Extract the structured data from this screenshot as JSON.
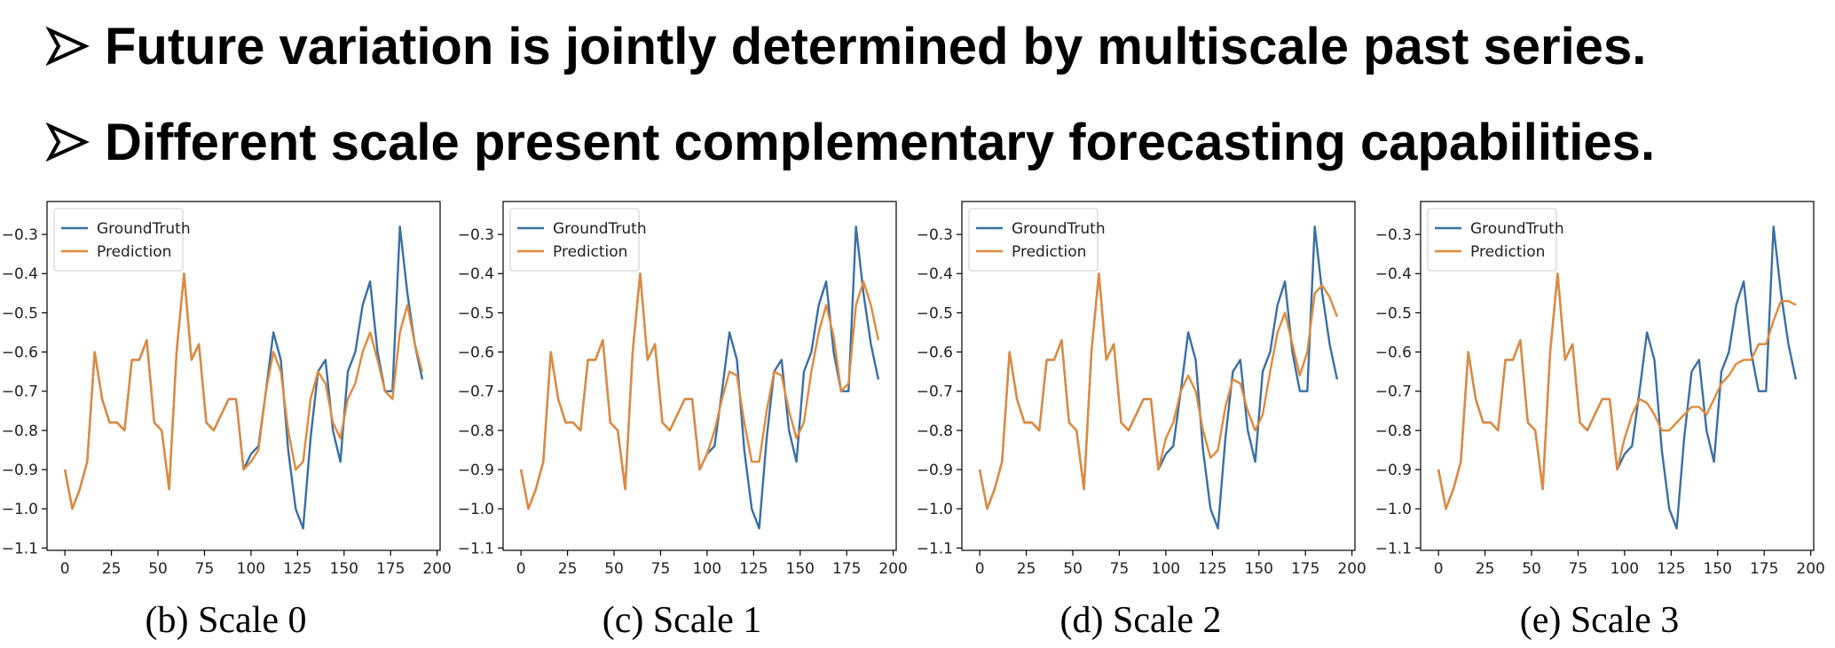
{
  "header": {
    "bullets": [
      "Future variation is jointly determined by multiscale past series.",
      "Different scale present complementary forecasting capabilities."
    ]
  },
  "chart_data": [
    {
      "type": "line",
      "caption": "(b) Scale 0",
      "legend": "upper left",
      "xlim": [
        -9.6,
        201.6
      ],
      "ylim": [
        -1.106,
        -0.216
      ],
      "xticks": [
        0,
        25,
        50,
        75,
        100,
        125,
        150,
        175,
        200
      ],
      "yticks": [
        {
          "value": -1.1,
          "label": "−1.1"
        },
        {
          "value": -1.0,
          "label": "−1.0"
        },
        {
          "value": -0.9,
          "label": "−0.9"
        },
        {
          "value": -0.8,
          "label": "−0.8"
        },
        {
          "value": -0.7,
          "label": "−0.7"
        },
        {
          "value": -0.6,
          "label": "−0.6"
        },
        {
          "value": -0.5,
          "label": "−0.5"
        },
        {
          "value": -0.4,
          "label": "−0.4"
        },
        {
          "value": -0.3,
          "label": "−0.3"
        }
      ],
      "x": [
        0,
        4,
        8,
        12,
        16,
        20,
        24,
        28,
        32,
        36,
        40,
        44,
        48,
        52,
        56,
        60,
        64,
        68,
        72,
        76,
        80,
        84,
        88,
        92,
        96,
        100,
        104,
        108,
        112,
        116,
        120,
        124,
        128,
        132,
        136,
        140,
        144,
        148,
        152,
        156,
        160,
        164,
        168,
        172,
        176,
        180,
        184,
        188,
        192
      ],
      "series": [
        {
          "name": "GroundTruth",
          "color": "#3a6fa5",
          "values": [
            -0.9,
            -1.0,
            -0.95,
            -0.88,
            -0.6,
            -0.72,
            -0.78,
            -0.78,
            -0.8,
            -0.62,
            -0.62,
            -0.57,
            -0.78,
            -0.8,
            -0.95,
            -0.6,
            -0.4,
            -0.62,
            -0.58,
            -0.78,
            -0.8,
            -0.76,
            -0.72,
            -0.72,
            -0.9,
            -0.86,
            -0.84,
            -0.7,
            -0.55,
            -0.62,
            -0.85,
            -1.0,
            -1.05,
            -0.82,
            -0.65,
            -0.62,
            -0.8,
            -0.88,
            -0.65,
            -0.6,
            -0.48,
            -0.42,
            -0.6,
            -0.7,
            -0.7,
            -0.28,
            -0.45,
            -0.58,
            -0.67
          ]
        },
        {
          "name": "Prediction",
          "color": "#e08a3c",
          "values": [
            -0.9,
            -1.0,
            -0.95,
            -0.88,
            -0.6,
            -0.72,
            -0.78,
            -0.78,
            -0.8,
            -0.62,
            -0.62,
            -0.57,
            -0.78,
            -0.8,
            -0.95,
            -0.6,
            -0.4,
            -0.62,
            -0.58,
            -0.78,
            -0.8,
            -0.76,
            -0.72,
            -0.72,
            -0.9,
            -0.88,
            -0.85,
            -0.7,
            -0.6,
            -0.65,
            -0.8,
            -0.9,
            -0.88,
            -0.72,
            -0.65,
            -0.68,
            -0.78,
            -0.82,
            -0.72,
            -0.68,
            -0.6,
            -0.55,
            -0.62,
            -0.7,
            -0.72,
            -0.55,
            -0.48,
            -0.58,
            -0.65
          ]
        }
      ]
    },
    {
      "type": "line",
      "caption": "(c) Scale 1",
      "legend": "upper left",
      "xlim": [
        -9.6,
        201.6
      ],
      "ylim": [
        -1.106,
        -0.216
      ],
      "xticks": [
        0,
        25,
        50,
        75,
        100,
        125,
        150,
        175,
        200
      ],
      "yticks": [
        {
          "value": -1.1,
          "label": "−1.1"
        },
        {
          "value": -1.0,
          "label": "−1.0"
        },
        {
          "value": -0.9,
          "label": "−0.9"
        },
        {
          "value": -0.8,
          "label": "−0.8"
        },
        {
          "value": -0.7,
          "label": "−0.7"
        },
        {
          "value": -0.6,
          "label": "−0.6"
        },
        {
          "value": -0.5,
          "label": "−0.5"
        },
        {
          "value": -0.4,
          "label": "−0.4"
        },
        {
          "value": -0.3,
          "label": "−0.3"
        }
      ],
      "x": [
        0,
        4,
        8,
        12,
        16,
        20,
        24,
        28,
        32,
        36,
        40,
        44,
        48,
        52,
        56,
        60,
        64,
        68,
        72,
        76,
        80,
        84,
        88,
        92,
        96,
        100,
        104,
        108,
        112,
        116,
        120,
        124,
        128,
        132,
        136,
        140,
        144,
        148,
        152,
        156,
        160,
        164,
        168,
        172,
        176,
        180,
        184,
        188,
        192
      ],
      "series": [
        {
          "name": "GroundTruth",
          "color": "#3a6fa5",
          "values": [
            -0.9,
            -1.0,
            -0.95,
            -0.88,
            -0.6,
            -0.72,
            -0.78,
            -0.78,
            -0.8,
            -0.62,
            -0.62,
            -0.57,
            -0.78,
            -0.8,
            -0.95,
            -0.6,
            -0.4,
            -0.62,
            -0.58,
            -0.78,
            -0.8,
            -0.76,
            -0.72,
            -0.72,
            -0.9,
            -0.86,
            -0.84,
            -0.7,
            -0.55,
            -0.62,
            -0.85,
            -1.0,
            -1.05,
            -0.82,
            -0.65,
            -0.62,
            -0.8,
            -0.88,
            -0.65,
            -0.6,
            -0.48,
            -0.42,
            -0.6,
            -0.7,
            -0.7,
            -0.28,
            -0.45,
            -0.58,
            -0.67
          ]
        },
        {
          "name": "Prediction",
          "color": "#e08a3c",
          "values": [
            -0.9,
            -1.0,
            -0.95,
            -0.88,
            -0.6,
            -0.72,
            -0.78,
            -0.78,
            -0.8,
            -0.62,
            -0.62,
            -0.57,
            -0.78,
            -0.8,
            -0.95,
            -0.6,
            -0.4,
            -0.62,
            -0.58,
            -0.78,
            -0.8,
            -0.76,
            -0.72,
            -0.72,
            -0.9,
            -0.86,
            -0.8,
            -0.72,
            -0.65,
            -0.66,
            -0.78,
            -0.88,
            -0.88,
            -0.75,
            -0.65,
            -0.66,
            -0.75,
            -0.82,
            -0.78,
            -0.65,
            -0.55,
            -0.48,
            -0.56,
            -0.7,
            -0.68,
            -0.48,
            -0.42,
            -0.48,
            -0.57
          ]
        }
      ]
    },
    {
      "type": "line",
      "caption": "(d) Scale 2",
      "legend": "upper left",
      "xlim": [
        -9.6,
        201.6
      ],
      "ylim": [
        -1.106,
        -0.216
      ],
      "xticks": [
        0,
        25,
        50,
        75,
        100,
        125,
        150,
        175,
        200
      ],
      "yticks": [
        {
          "value": -1.1,
          "label": "−1.1"
        },
        {
          "value": -1.0,
          "label": "−1.0"
        },
        {
          "value": -0.9,
          "label": "−0.9"
        },
        {
          "value": -0.8,
          "label": "−0.8"
        },
        {
          "value": -0.7,
          "label": "−0.7"
        },
        {
          "value": -0.6,
          "label": "−0.6"
        },
        {
          "value": -0.5,
          "label": "−0.5"
        },
        {
          "value": -0.4,
          "label": "−0.4"
        },
        {
          "value": -0.3,
          "label": "−0.3"
        }
      ],
      "x": [
        0,
        4,
        8,
        12,
        16,
        20,
        24,
        28,
        32,
        36,
        40,
        44,
        48,
        52,
        56,
        60,
        64,
        68,
        72,
        76,
        80,
        84,
        88,
        92,
        96,
        100,
        104,
        108,
        112,
        116,
        120,
        124,
        128,
        132,
        136,
        140,
        144,
        148,
        152,
        156,
        160,
        164,
        168,
        172,
        176,
        180,
        184,
        188,
        192
      ],
      "series": [
        {
          "name": "GroundTruth",
          "color": "#3a6fa5",
          "values": [
            -0.9,
            -1.0,
            -0.95,
            -0.88,
            -0.6,
            -0.72,
            -0.78,
            -0.78,
            -0.8,
            -0.62,
            -0.62,
            -0.57,
            -0.78,
            -0.8,
            -0.95,
            -0.6,
            -0.4,
            -0.62,
            -0.58,
            -0.78,
            -0.8,
            -0.76,
            -0.72,
            -0.72,
            -0.9,
            -0.86,
            -0.84,
            -0.7,
            -0.55,
            -0.62,
            -0.85,
            -1.0,
            -1.05,
            -0.82,
            -0.65,
            -0.62,
            -0.8,
            -0.88,
            -0.65,
            -0.6,
            -0.48,
            -0.42,
            -0.6,
            -0.7,
            -0.7,
            -0.28,
            -0.45,
            -0.58,
            -0.67
          ]
        },
        {
          "name": "Prediction",
          "color": "#e08a3c",
          "values": [
            -0.9,
            -1.0,
            -0.95,
            -0.88,
            -0.6,
            -0.72,
            -0.78,
            -0.78,
            -0.8,
            -0.62,
            -0.62,
            -0.57,
            -0.78,
            -0.8,
            -0.95,
            -0.6,
            -0.4,
            -0.62,
            -0.58,
            -0.78,
            -0.8,
            -0.76,
            -0.72,
            -0.72,
            -0.9,
            -0.82,
            -0.78,
            -0.7,
            -0.66,
            -0.7,
            -0.8,
            -0.87,
            -0.85,
            -0.74,
            -0.67,
            -0.68,
            -0.75,
            -0.8,
            -0.76,
            -0.65,
            -0.55,
            -0.5,
            -0.58,
            -0.66,
            -0.6,
            -0.45,
            -0.43,
            -0.46,
            -0.51
          ]
        }
      ]
    },
    {
      "type": "line",
      "caption": "(e) Scale 3",
      "legend": "upper left",
      "xlim": [
        -9.6,
        201.6
      ],
      "ylim": [
        -1.106,
        -0.216
      ],
      "xticks": [
        0,
        25,
        50,
        75,
        100,
        125,
        150,
        175,
        200
      ],
      "yticks": [
        {
          "value": -1.1,
          "label": "−1.1"
        },
        {
          "value": -1.0,
          "label": "−1.0"
        },
        {
          "value": -0.9,
          "label": "−0.9"
        },
        {
          "value": -0.8,
          "label": "−0.8"
        },
        {
          "value": -0.7,
          "label": "−0.7"
        },
        {
          "value": -0.6,
          "label": "−0.6"
        },
        {
          "value": -0.5,
          "label": "−0.5"
        },
        {
          "value": -0.4,
          "label": "−0.4"
        },
        {
          "value": -0.3,
          "label": "−0.3"
        }
      ],
      "x": [
        0,
        4,
        8,
        12,
        16,
        20,
        24,
        28,
        32,
        36,
        40,
        44,
        48,
        52,
        56,
        60,
        64,
        68,
        72,
        76,
        80,
        84,
        88,
        92,
        96,
        100,
        104,
        108,
        112,
        116,
        120,
        124,
        128,
        132,
        136,
        140,
        144,
        148,
        152,
        156,
        160,
        164,
        168,
        172,
        176,
        180,
        184,
        188,
        192
      ],
      "series": [
        {
          "name": "GroundTruth",
          "color": "#3a6fa5",
          "values": [
            -0.9,
            -1.0,
            -0.95,
            -0.88,
            -0.6,
            -0.72,
            -0.78,
            -0.78,
            -0.8,
            -0.62,
            -0.62,
            -0.57,
            -0.78,
            -0.8,
            -0.95,
            -0.6,
            -0.4,
            -0.62,
            -0.58,
            -0.78,
            -0.8,
            -0.76,
            -0.72,
            -0.72,
            -0.9,
            -0.86,
            -0.84,
            -0.7,
            -0.55,
            -0.62,
            -0.85,
            -1.0,
            -1.05,
            -0.82,
            -0.65,
            -0.62,
            -0.8,
            -0.88,
            -0.65,
            -0.6,
            -0.48,
            -0.42,
            -0.6,
            -0.7,
            -0.7,
            -0.28,
            -0.45,
            -0.58,
            -0.67
          ]
        },
        {
          "name": "Prediction",
          "color": "#e08a3c",
          "values": [
            -0.9,
            -1.0,
            -0.95,
            -0.88,
            -0.6,
            -0.72,
            -0.78,
            -0.78,
            -0.8,
            -0.62,
            -0.62,
            -0.57,
            -0.78,
            -0.8,
            -0.95,
            -0.6,
            -0.4,
            -0.62,
            -0.58,
            -0.78,
            -0.8,
            -0.76,
            -0.72,
            -0.72,
            -0.9,
            -0.82,
            -0.76,
            -0.72,
            -0.73,
            -0.76,
            -0.8,
            -0.8,
            -0.78,
            -0.76,
            -0.74,
            -0.74,
            -0.76,
            -0.72,
            -0.68,
            -0.66,
            -0.63,
            -0.62,
            -0.62,
            -0.58,
            -0.58,
            -0.52,
            -0.47,
            -0.47,
            -0.48
          ]
        }
      ]
    }
  ]
}
